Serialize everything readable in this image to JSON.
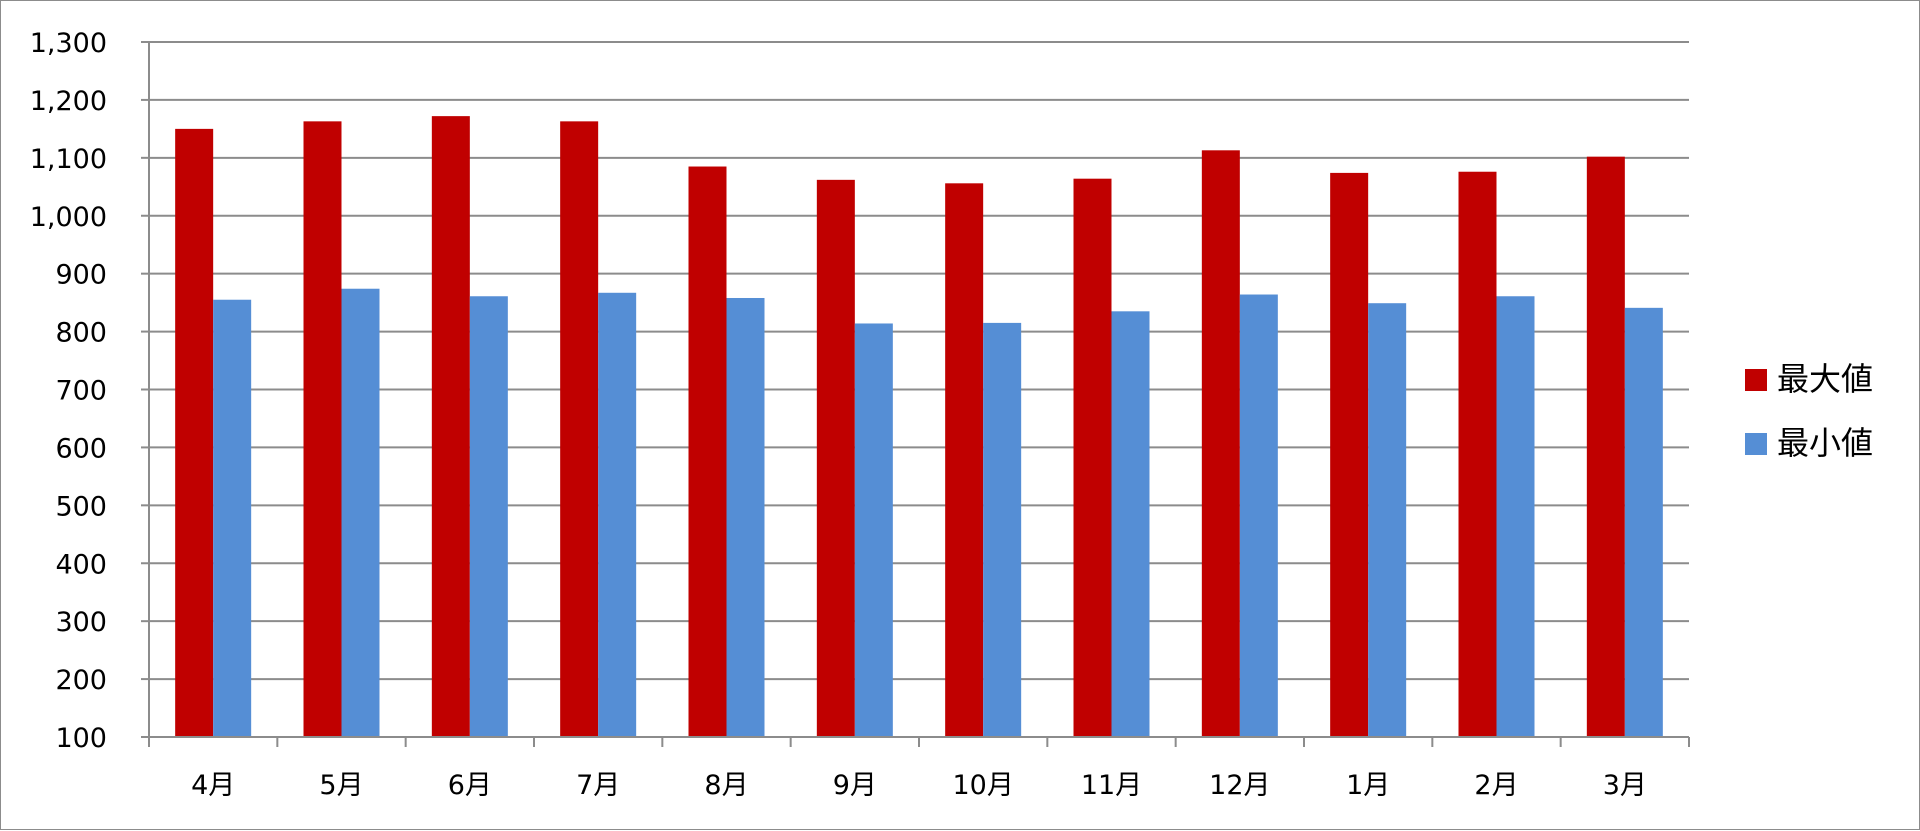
{
  "chart_data": {
    "type": "bar",
    "title": "",
    "xlabel": "",
    "ylabel": "",
    "categories": [
      "4月",
      "5月",
      "6月",
      "7月",
      "8月",
      "9月",
      "10月",
      "11月",
      "12月",
      "1月",
      "2月",
      "3月"
    ],
    "series": [
      {
        "name": "最大値",
        "color": "#c00000",
        "values": [
          1150,
          1163,
          1172,
          1163,
          1085,
          1062,
          1056,
          1064,
          1113,
          1074,
          1076,
          1102
        ]
      },
      {
        "name": "最小値",
        "color": "#558ed5",
        "values": [
          855,
          874,
          861,
          867,
          858,
          814,
          815,
          835,
          864,
          849,
          861,
          841
        ]
      }
    ],
    "ylim": [
      100,
      1300
    ],
    "y_ticks": [
      100,
      200,
      300,
      400,
      500,
      600,
      700,
      800,
      900,
      1000,
      1100,
      1200,
      1300
    ],
    "y_tick_labels": [
      "100",
      "200",
      "300",
      "400",
      "500",
      "600",
      "700",
      "800",
      "900",
      "1,000",
      "1,100",
      "1,200",
      "1,300"
    ],
    "grid": true,
    "legend_position": "right"
  }
}
